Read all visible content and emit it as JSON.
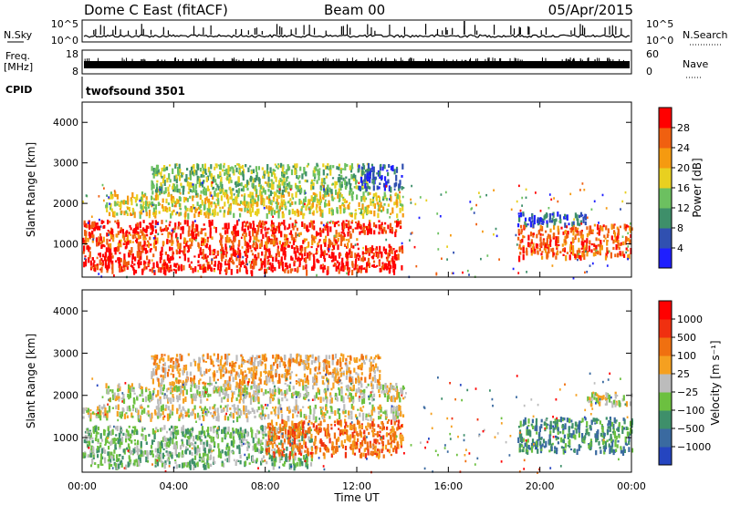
{
  "header": {
    "station": "Dome C East (fitACF)",
    "beam": "Beam 00",
    "date": "05/Apr/2015"
  },
  "nsky": {
    "label": "N.Sky",
    "tick_top": "10^5",
    "tick_bottom": "10^0",
    "right_label": "N.Search",
    "right_tick_top": "10^5",
    "right_tick_bottom": "10^0"
  },
  "freq": {
    "label_line1": "Freq.",
    "label_line2": "[MHz]",
    "tick_top": "18",
    "tick_bottom": "8",
    "right_label": "Nave",
    "right_tick_top": "60",
    "right_tick_bottom": "0"
  },
  "cpid": {
    "label": "CPID",
    "program": "twofsound 3501"
  },
  "axes": {
    "x_label": "Time UT",
    "x_ticks": [
      "00:00",
      "04:00",
      "08:00",
      "12:00",
      "16:00",
      "20:00",
      "00:00"
    ],
    "y_label": "Slant Range [km]",
    "y_ticks": [
      "1000",
      "2000",
      "3000",
      "4000"
    ]
  },
  "power_scale": {
    "label": "Power [dB]",
    "ticks": [
      "4",
      "8",
      "12",
      "16",
      "20",
      "24",
      "28"
    ],
    "colors": [
      "#1f1fff",
      "#3050b0",
      "#3e8f6a",
      "#6cc060",
      "#e8d020",
      "#f59a10",
      "#f06010",
      "#ff0000"
    ]
  },
  "velocity_scale": {
    "label": "Velocity [m s⁻¹]",
    "ticks": [
      "1000",
      "500",
      "100",
      "25",
      "−25",
      "−100",
      "−500",
      "−1000"
    ],
    "colors": [
      "#2545c0",
      "#3a6aa0",
      "#3e8f6a",
      "#6cc040",
      "#bcbcbc",
      "#f5a020",
      "#f07010",
      "#f03010",
      "#ff0000"
    ]
  },
  "chart_data": {
    "type": "heatmap",
    "x_range_hours": [
      0,
      24
    ],
    "y_range_km": [
      180,
      4500
    ],
    "panels": [
      {
        "name": "power",
        "regions": [
          {
            "t": [
              0,
              14
            ],
            "r": [
              350,
              1000
            ],
            "level": 7
          },
          {
            "t": [
              0,
              12
            ],
            "r": [
              1000,
              1300
            ],
            "level": 6
          },
          {
            "t": [
              0,
              14
            ],
            "r": [
              1300,
              1600
            ],
            "level": 7
          },
          {
            "t": [
              1,
              14
            ],
            "r": [
              1750,
              2300
            ],
            "level": 4
          },
          {
            "t": [
              3,
              12.5
            ],
            "r": [
              2300,
              3000
            ],
            "level": 3
          },
          {
            "t": [
              12,
              14
            ],
            "r": [
              2400,
              3000
            ],
            "level": 1
          },
          {
            "t": [
              19,
              24
            ],
            "r": [
              700,
              1500
            ],
            "level": 6
          },
          {
            "t": [
              19,
              22
            ],
            "r": [
              1500,
              1800
            ],
            "level": 1
          }
        ]
      },
      {
        "name": "velocity",
        "regions": [
          {
            "t": [
              0,
              10
            ],
            "r": [
              350,
              1300
            ],
            "level": 3
          },
          {
            "t": [
              8,
              14
            ],
            "r": [
              600,
              1450
            ],
            "level": 6
          },
          {
            "t": [
              0,
              14
            ],
            "r": [
              1500,
              1800
            ],
            "level": 4
          },
          {
            "t": [
              1,
              14
            ],
            "r": [
              1900,
              2300
            ],
            "level": 4
          },
          {
            "t": [
              3,
              13
            ],
            "r": [
              2300,
              3000
            ],
            "level": 5
          },
          {
            "t": [
              19,
              24
            ],
            "r": [
              700,
              1500
            ],
            "level": 2
          },
          {
            "t": [
              22,
              24
            ],
            "r": [
              1800,
              2100
            ],
            "level": 4
          }
        ]
      }
    ]
  }
}
